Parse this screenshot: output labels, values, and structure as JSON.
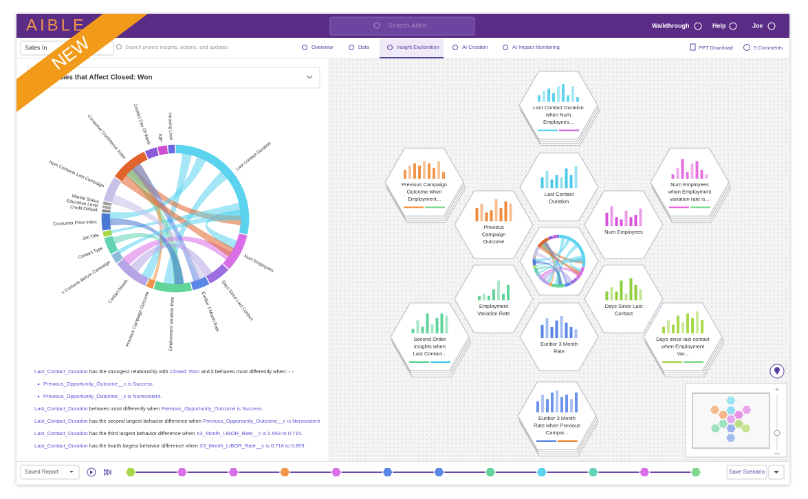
{
  "header": {
    "logo": "AIBLE",
    "ribbon": "NEW",
    "search_placeholder": "Search Aible",
    "walkthrough": "Walkthrough",
    "help": "Help",
    "user": "Joe"
  },
  "toolbar": {
    "project": "Sales In",
    "search_placeholder": "Search project insights, actions, and updates",
    "tabs": [
      "Overview",
      "Data",
      "Insight Exploration",
      "AI Creation",
      "AI Impact Monitoring"
    ],
    "active_tab": 2,
    "ppt": "PPT Download",
    "comments": "5 Comments"
  },
  "left_panel": {
    "dropdown": "Variables that Affect Closed: Won",
    "chord": {
      "segments": [
        {
          "label": "Last Contact Duration",
          "size": 100,
          "color": "#5bd3ee"
        },
        {
          "label": "Num Employees",
          "size": 30,
          "color": "#d86fe6"
        },
        {
          "label": "Days Since Last Contact",
          "size": 18,
          "color": "#9b6ee0"
        },
        {
          "label": "Euribor 3 Month Rate",
          "size": 14,
          "color": "#5a86e6"
        },
        {
          "label": "Employment Variation Rate",
          "size": 30,
          "color": "#62d49a"
        },
        {
          "label": "Previous Campaign Outcome",
          "size": 6,
          "color": "#f0964a"
        },
        {
          "label": "Contact Month",
          "size": 28,
          "color": "#b7a4e6"
        },
        {
          "label": "n Contacts Before Campaign",
          "size": 8,
          "color": "#8bbcd8"
        },
        {
          "label": "Contact Type",
          "size": 14,
          "color": "#62d4b4"
        },
        {
          "label": "Job Title",
          "size": 5,
          "color": "#a6d84a"
        },
        {
          "label": "Consumer Price Index",
          "size": 14,
          "color": "#4a78d4"
        },
        {
          "label": "Credit Default",
          "size": 3,
          "color": "#888888"
        },
        {
          "label": "Education Level",
          "size": 3,
          "color": "#aaaaaa"
        },
        {
          "label": "Marital Status",
          "size": 3,
          "color": "#999999"
        },
        {
          "label": "Num Contacts Last Campaign",
          "size": 20,
          "color": "#c6c1e8"
        },
        {
          "label": "Consumer Confidence Index",
          "size": 30,
          "color": "#e0642c"
        },
        {
          "label": "Contact Day Of Week",
          "size": 10,
          "color": "#8a5ad8"
        },
        {
          "label": "Age",
          "size": 8,
          "color": "#d04fd0"
        },
        {
          "label": "Housing Loan",
          "size": 6,
          "color": "#6a6ae0"
        }
      ],
      "links": [
        [
          0,
          6
        ],
        [
          0,
          4
        ],
        [
          0,
          1
        ],
        [
          15,
          0
        ],
        [
          0,
          9
        ],
        [
          4,
          15
        ],
        [
          1,
          6
        ],
        [
          5,
          15
        ],
        [
          8,
          4
        ],
        [
          0,
          10
        ],
        [
          3,
          15
        ],
        [
          14,
          3
        ],
        [
          6,
          2
        ],
        [
          15,
          1
        ],
        [
          10,
          4
        ],
        [
          0,
          7
        ]
      ]
    },
    "narrative": [
      {
        "bullet": false,
        "parts": [
          {
            "text": "Last_Contact_Duration",
            "hl": true
          },
          {
            "text": " has the strongest relationship with ",
            "hl": false
          },
          {
            "text": "Closed: Won",
            "hl": true
          },
          {
            "text": " and it behaves most differently when: - -",
            "hl": false
          }
        ]
      },
      {
        "bullet": true,
        "parts": [
          {
            "text": "Previous_Opportunity_Outcome__c is Success.",
            "hl": true
          }
        ]
      },
      {
        "bullet": true,
        "parts": [
          {
            "text": "Previous_Opportunity_Outcome__c is Nonexistent.",
            "hl": true
          }
        ]
      },
      {
        "bullet": false,
        "parts": [
          {
            "text": "Last_Contact_Duration",
            "hl": true
          },
          {
            "text": " behaves most differently when ",
            "hl": false
          },
          {
            "text": "Previous_Opportunity_Outcome is Success.",
            "hl": true
          }
        ]
      },
      {
        "bullet": false,
        "parts": [
          {
            "text": "Last_Contact_Duration",
            "hl": true
          },
          {
            "text": " has the second largest behavior difference when ",
            "hl": false
          },
          {
            "text": "Previous_Opportunity_Outcome__c is Nonexistent",
            "hl": true
          }
        ]
      },
      {
        "bullet": false,
        "parts": [
          {
            "text": "Last_Contact_Duration",
            "hl": true
          },
          {
            "text": " has the third largest behavior difference when ",
            "hl": false
          },
          {
            "text": "X3_Month_LIBOR_Rate__c is 0.653 to 0.715.",
            "hl": true
          }
        ]
      },
      {
        "bullet": false,
        "parts": [
          {
            "text": "Last_Contact_Duration",
            "hl": true
          },
          {
            "text": " has the fourth largest behavior difference when ",
            "hl": false
          },
          {
            "text": "X3_Month_LIBOR_Rate__c is 0.716 to 0.859.",
            "hl": true
          }
        ]
      }
    ]
  },
  "hexes": [
    {
      "label": [
        "Last Contact Duration",
        "when Num",
        "Employees..."
      ],
      "color": "#5fd3ee",
      "stacked": true,
      "tags": [
        "#5fd3ee",
        "#d36be0"
      ],
      "bars": [
        3,
        5,
        6,
        4,
        7,
        8,
        3,
        7,
        2
      ]
    },
    {
      "label": [
        "Previous Campaign",
        "Outcome when",
        "Employment..."
      ],
      "color": "#f0964a",
      "stacked": true,
      "tags": [
        "#f0964a",
        "#7fd88f"
      ],
      "bars": [
        4,
        6,
        7,
        6,
        8,
        7,
        5,
        8,
        3
      ]
    },
    {
      "label": [
        "Num Employees",
        "when Employment",
        "variation rate is..."
      ],
      "color": "#e36ee0",
      "stacked": true,
      "tags": [
        "#e36ee0",
        "#7fd88f"
      ],
      "bars": [
        2,
        5,
        9,
        3,
        7,
        8,
        4,
        2
      ]
    },
    {
      "label": [
        "Last Contact",
        "Duration"
      ],
      "color": "#4cc9e8",
      "stacked": false,
      "tags": [],
      "bars": [
        5,
        8,
        4,
        6,
        5,
        9,
        6,
        10
      ]
    },
    {
      "label": [
        "Previous",
        "Campaign",
        "Outcome"
      ],
      "color": "#ee8a3c",
      "stacked": false,
      "tags": [],
      "bars": [
        6,
        8,
        4,
        5,
        10,
        6,
        9,
        8
      ]
    },
    {
      "label": [
        "Num Employees"
      ],
      "color": "#d94fd8",
      "stacked": false,
      "tags": [],
      "bars": [
        6,
        9,
        4,
        3,
        7,
        4,
        5,
        8
      ]
    },
    {
      "label": [
        "Employment",
        "Variation Rate"
      ],
      "color": "#62d49a",
      "stacked": false,
      "tags": [],
      "bars": [
        2,
        3,
        2,
        5,
        9,
        3,
        7
      ]
    },
    {
      "label": [
        "Days Since Last",
        "Contact"
      ],
      "color": "#8fcf3c",
      "stacked": false,
      "tags": [],
      "bars": [
        4,
        6,
        4,
        9,
        3,
        10,
        7,
        5
      ]
    },
    {
      "label": [
        "Euribor 3 Month",
        "Rate"
      ],
      "color": "#5a86e6",
      "stacked": false,
      "tags": [],
      "bars": [
        6,
        9,
        5,
        8,
        10,
        7,
        5,
        4
      ]
    },
    {
      "label": [
        "Second Order",
        "insights when",
        "Last Contact..."
      ],
      "color": "#5fd49a",
      "stacked": true,
      "tags": [
        "#5fd49a",
        "#4cc9e8"
      ],
      "bars": [
        2,
        6,
        3,
        9,
        4,
        7,
        9,
        8
      ]
    },
    {
      "label": [
        "Days since last contact",
        "when Employment",
        "Var..."
      ],
      "color": "#a6d84a",
      "stacked": true,
      "tags": [
        "#a6d84a",
        "#7fd88f"
      ],
      "bars": [
        3,
        6,
        4,
        8,
        5,
        9,
        7,
        10,
        6
      ]
    },
    {
      "label": [
        "Euribor 3 Month",
        "Rate when Previous",
        "Campai..."
      ],
      "color": "#6b93ea",
      "stacked": true,
      "tags": [
        "#5a86e6",
        "#ee8a3c"
      ],
      "bars": [
        5,
        8,
        6,
        9,
        10,
        7,
        8,
        6,
        9
      ]
    }
  ],
  "bottom": {
    "saved_report": "Saved Report",
    "save_scenario": "Save Scenario",
    "timeline": [
      "#a6d84a",
      "#d86fe6",
      "#d86fe6",
      "#f0964a",
      "#d86fe6",
      "#5a86e6",
      "#5a86e6",
      "#62d49a",
      "#5bd3ee",
      "#62d4b4",
      "#d86fe6",
      "#7fd88f"
    ]
  }
}
